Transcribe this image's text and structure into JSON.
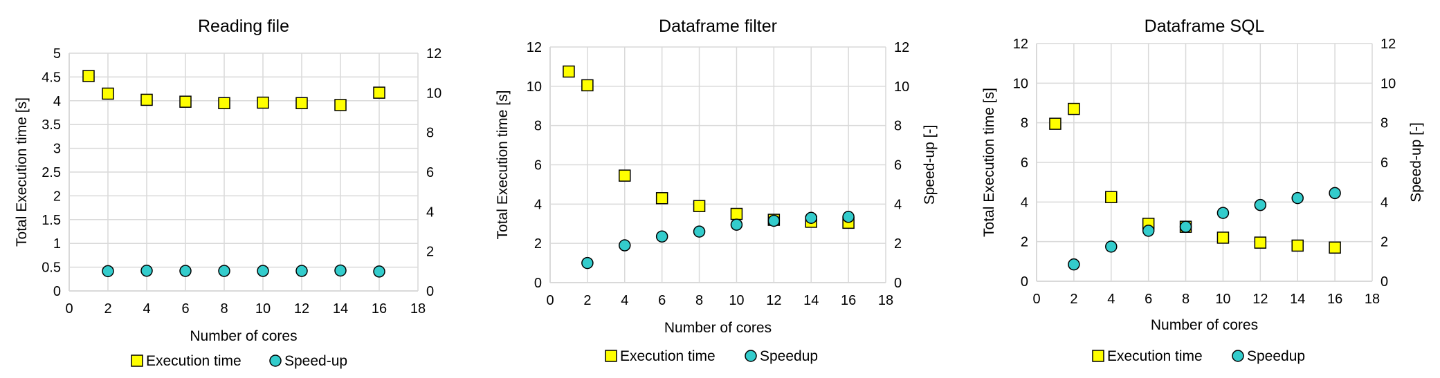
{
  "chart_data": [
    {
      "type": "scatter",
      "title": "Reading file",
      "xlabel": "Number of cores",
      "ylabel": "Total Execution time [s]",
      "y2label": "",
      "xlim": [
        0,
        18
      ],
      "ylim": [
        0,
        5
      ],
      "y2lim": [
        0,
        12
      ],
      "xticks": [
        0,
        2,
        4,
        6,
        8,
        10,
        12,
        14,
        16,
        18
      ],
      "yticks": [
        0,
        0.5,
        1,
        1.5,
        2,
        2.5,
        3,
        3.5,
        4,
        4.5,
        5
      ],
      "y2ticks": [
        0,
        2,
        4,
        6,
        8,
        10,
        12
      ],
      "grid": true,
      "legend_position": "bottom",
      "series": [
        {
          "name": "Execution time",
          "axis": "left",
          "marker": "square",
          "color": "#ffff00",
          "x": [
            1,
            2,
            4,
            6,
            8,
            10,
            12,
            14,
            16
          ],
          "y": [
            4.52,
            4.15,
            4.02,
            3.98,
            3.95,
            3.96,
            3.95,
            3.91,
            4.17
          ]
        },
        {
          "name": "Speed-up",
          "axis": "right",
          "marker": "circle",
          "color": "#33cccc",
          "x": [
            2,
            4,
            6,
            8,
            10,
            12,
            14,
            16
          ],
          "y": [
            1.0,
            1.02,
            1.01,
            1.01,
            1.01,
            1.01,
            1.03,
            0.98
          ]
        }
      ]
    },
    {
      "type": "scatter",
      "title": "Dataframe filter",
      "xlabel": "Number of cores",
      "ylabel": "Total Execution time [s]",
      "y2label": "Speed-up [-]",
      "xlim": [
        0,
        18
      ],
      "ylim": [
        0,
        12
      ],
      "y2lim": [
        0,
        12
      ],
      "xticks": [
        0,
        2,
        4,
        6,
        8,
        10,
        12,
        14,
        16,
        18
      ],
      "yticks": [
        0,
        2,
        4,
        6,
        8,
        10,
        12
      ],
      "y2ticks": [
        0,
        2,
        4,
        6,
        8,
        10,
        12
      ],
      "grid": true,
      "legend_position": "bottom",
      "series": [
        {
          "name": "Execution time",
          "axis": "left",
          "marker": "square",
          "color": "#ffff00",
          "x": [
            1,
            2,
            4,
            6,
            8,
            10,
            12,
            14,
            16
          ],
          "y": [
            10.75,
            10.05,
            5.45,
            4.3,
            3.9,
            3.5,
            3.2,
            3.1,
            3.05
          ]
        },
        {
          "name": "Speedup",
          "axis": "right",
          "marker": "circle",
          "color": "#33cccc",
          "x": [
            2,
            4,
            6,
            8,
            10,
            12,
            14,
            16
          ],
          "y": [
            1.0,
            1.9,
            2.35,
            2.6,
            2.95,
            3.15,
            3.3,
            3.35
          ]
        }
      ]
    },
    {
      "type": "scatter",
      "title": "Dataframe SQL",
      "xlabel": "Number of cores",
      "ylabel": "Total Execution time [s]",
      "y2label": "Speed-up [-]",
      "xlim": [
        0,
        18
      ],
      "ylim": [
        0,
        12
      ],
      "y2lim": [
        0,
        12
      ],
      "xticks": [
        0,
        2,
        4,
        6,
        8,
        10,
        12,
        14,
        16,
        18
      ],
      "yticks": [
        0,
        2,
        4,
        6,
        8,
        10,
        12
      ],
      "y2ticks": [
        0,
        2,
        4,
        6,
        8,
        10,
        12
      ],
      "grid": true,
      "legend_position": "bottom",
      "series": [
        {
          "name": "Execution time",
          "axis": "left",
          "marker": "square",
          "color": "#ffff00",
          "x": [
            1,
            2,
            4,
            6,
            8,
            10,
            12,
            14,
            16
          ],
          "y": [
            7.95,
            8.7,
            4.25,
            2.9,
            2.75,
            2.2,
            1.95,
            1.8,
            1.7
          ]
        },
        {
          "name": "Speedup",
          "axis": "right",
          "marker": "circle",
          "color": "#33cccc",
          "x": [
            2,
            4,
            6,
            8,
            10,
            12,
            14,
            16
          ],
          "y": [
            0.85,
            1.75,
            2.55,
            2.75,
            3.45,
            3.85,
            4.2,
            4.45
          ]
        }
      ]
    }
  ],
  "colors": {
    "grid": "#d9d9d9",
    "marker_outline": "#000000"
  }
}
